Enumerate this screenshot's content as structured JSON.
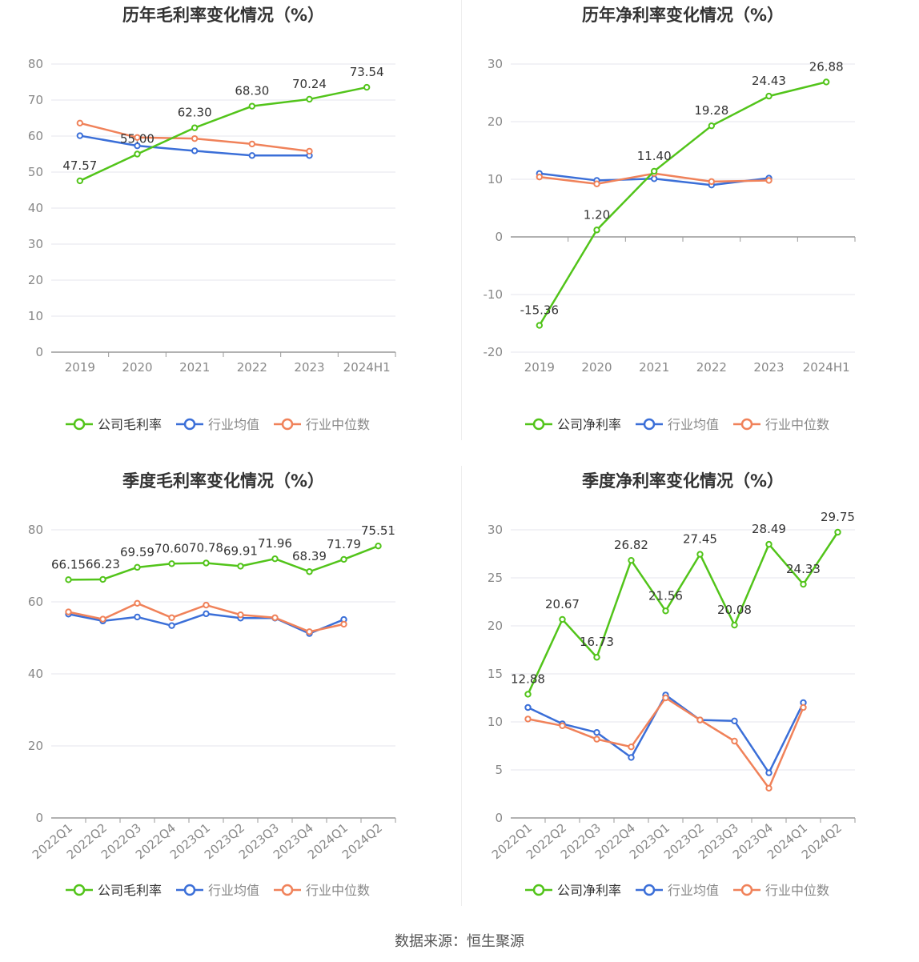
{
  "source": "数据来源：恒生聚源",
  "colors": {
    "company": "#52c41a",
    "avg": "#3b6fd8",
    "median": "#f0825a",
    "grid": "#e6e6ee",
    "axis": "#999999",
    "tick": "#888888"
  },
  "chart_data": [
    {
      "type": "line",
      "title": "历年毛利率变化情况（%）",
      "categories": [
        "2019",
        "2020",
        "2021",
        "2022",
        "2023",
        "2024H1"
      ],
      "ylim": [
        0,
        80
      ],
      "yticks": [
        0,
        10,
        20,
        30,
        40,
        50,
        60,
        70,
        80
      ],
      "xlabel_rotate": false,
      "legend_position": "bottom",
      "series": [
        {
          "name": "公司毛利率",
          "key": "company",
          "values": [
            47.57,
            55.0,
            62.3,
            68.3,
            70.24,
            73.54
          ],
          "labels": [
            "47.57",
            "55.00",
            "62.30",
            "68.30",
            "70.24",
            "73.54"
          ]
        },
        {
          "name": "行业均值",
          "key": "avg",
          "values": [
            60.1,
            57.3,
            55.9,
            54.6,
            54.6,
            null
          ]
        },
        {
          "name": "行业中位数",
          "key": "median",
          "values": [
            63.6,
            59.6,
            59.3,
            57.8,
            55.8,
            null
          ]
        }
      ]
    },
    {
      "type": "line",
      "title": "历年净利率变化情况（%）",
      "categories": [
        "2019",
        "2020",
        "2021",
        "2022",
        "2023",
        "2024H1"
      ],
      "ylim": [
        -20,
        30
      ],
      "yticks": [
        -20,
        -10,
        0,
        10,
        20,
        30
      ],
      "xlabel_rotate": false,
      "legend_position": "bottom",
      "series": [
        {
          "name": "公司净利率",
          "key": "company",
          "values": [
            -15.36,
            1.2,
            11.4,
            19.28,
            24.43,
            26.88
          ],
          "labels": [
            "-15.36",
            "1.20",
            "11.40",
            "19.28",
            "24.43",
            "26.88"
          ]
        },
        {
          "name": "行业均值",
          "key": "avg",
          "values": [
            11.0,
            9.8,
            10.1,
            9.0,
            10.2,
            null
          ]
        },
        {
          "name": "行业中位数",
          "key": "median",
          "values": [
            10.4,
            9.2,
            11.0,
            9.6,
            9.8,
            null
          ]
        }
      ]
    },
    {
      "type": "line",
      "title": "季度毛利率变化情况（%）",
      "categories": [
        "2022Q1",
        "2022Q2",
        "2022Q3",
        "2022Q4",
        "2023Q1",
        "2023Q2",
        "2023Q3",
        "2023Q4",
        "2024Q1",
        "2024Q2"
      ],
      "ylim": [
        0,
        80
      ],
      "yticks": [
        0,
        20,
        40,
        60,
        80
      ],
      "xlabel_rotate": true,
      "legend_position": "bottom",
      "series": [
        {
          "name": "公司毛利率",
          "key": "company",
          "values": [
            66.15,
            66.23,
            69.59,
            70.6,
            70.78,
            69.91,
            71.96,
            68.39,
            71.79,
            75.51
          ],
          "labels": [
            "66.15",
            "66.23",
            "69.59",
            "70.60",
            "70.78",
            "69.91",
            "71.96",
            "68.39",
            "71.79",
            "75.51"
          ]
        },
        {
          "name": "行业均值",
          "key": "avg",
          "values": [
            56.6,
            54.7,
            55.8,
            53.4,
            56.7,
            55.5,
            55.5,
            51.2,
            55.1,
            null
          ]
        },
        {
          "name": "行业中位数",
          "key": "median",
          "values": [
            57.2,
            55.2,
            59.6,
            55.6,
            59.1,
            56.4,
            55.6,
            51.7,
            53.8,
            null
          ]
        }
      ]
    },
    {
      "type": "line",
      "title": "季度净利率变化情况（%）",
      "categories": [
        "2022Q1",
        "2022Q2",
        "2022Q3",
        "2022Q4",
        "2023Q1",
        "2023Q2",
        "2023Q3",
        "2023Q4",
        "2024Q1",
        "2024Q2"
      ],
      "ylim": [
        0,
        30
      ],
      "yticks": [
        0,
        5,
        10,
        15,
        20,
        25,
        30
      ],
      "xlabel_rotate": true,
      "legend_position": "bottom",
      "series": [
        {
          "name": "公司净利率",
          "key": "company",
          "values": [
            12.88,
            20.67,
            16.73,
            26.82,
            21.56,
            27.45,
            20.08,
            28.49,
            24.33,
            29.75
          ],
          "labels": [
            "12.88",
            "20.67",
            "16.73",
            "26.82",
            "21.56",
            "27.45",
            "20.08",
            "28.49",
            "24.33",
            "29.75"
          ]
        },
        {
          "name": "行业均值",
          "key": "avg",
          "values": [
            11.5,
            9.8,
            8.9,
            6.3,
            12.8,
            10.2,
            10.1,
            4.7,
            12.0,
            null
          ]
        },
        {
          "name": "行业中位数",
          "key": "median",
          "values": [
            10.3,
            9.6,
            8.2,
            7.4,
            12.5,
            10.2,
            8.0,
            3.1,
            11.5,
            null
          ]
        }
      ]
    }
  ]
}
